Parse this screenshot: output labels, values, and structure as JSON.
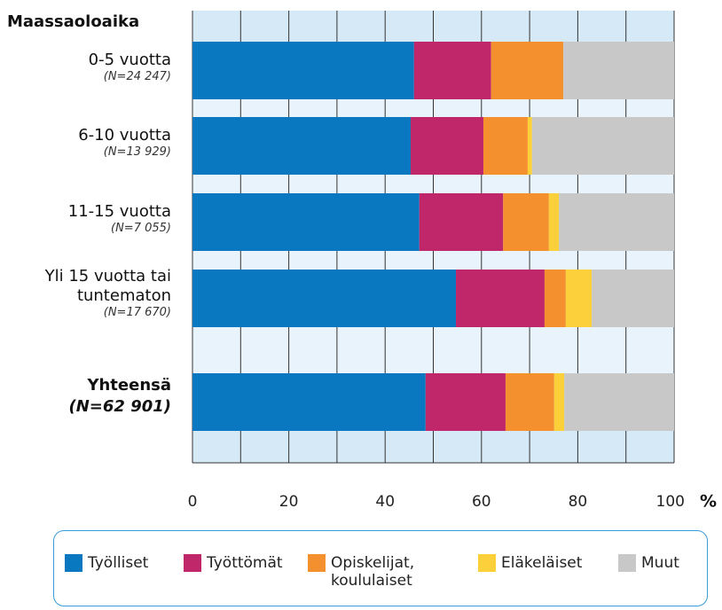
{
  "chart_data": {
    "type": "stacked_barh",
    "category_header": "Maassaoloaika",
    "categories": [
      "0-5 vuotta",
      "6-10 vuotta",
      "11-15 vuotta",
      "Yli 15 vuotta tai\ntuntematon",
      "Yhteensä"
    ],
    "sublabels": [
      "(N=24 247)",
      "(N=13 929)",
      "(N=7 055)",
      "(N=17 670)",
      "(N=62 901)"
    ],
    "category_bold": [
      false,
      false,
      false,
      false,
      true
    ],
    "series": [
      {
        "name": "Työlliset",
        "color": "#0a78c0",
        "values": [
          46,
          45.3,
          47.1,
          54.7,
          48.4
        ]
      },
      {
        "name": "Työttömät",
        "color": "#c0266a",
        "values": [
          16,
          15.1,
          17.4,
          18.4,
          16.6
        ]
      },
      {
        "name": "Opiskelijat,\nkoululaiset",
        "color": "#f5902e",
        "values": [
          15,
          9.2,
          9.5,
          4.4,
          10.1
        ]
      },
      {
        "name": "Eläkeläiset",
        "color": "#fcd03a",
        "values": [
          0,
          0.9,
          2.1,
          5.4,
          2.1
        ]
      },
      {
        "name": "Muut",
        "color": "#c8c8c8",
        "values": [
          23,
          29.5,
          23.9,
          17.1,
          22.8
        ]
      }
    ],
    "xlim": [
      0,
      100
    ],
    "xticks": [
      0,
      20,
      40,
      60,
      80,
      100
    ],
    "minor_xticks": [
      10,
      30,
      50,
      70,
      90
    ],
    "x_unit": "%",
    "grid": true
  }
}
